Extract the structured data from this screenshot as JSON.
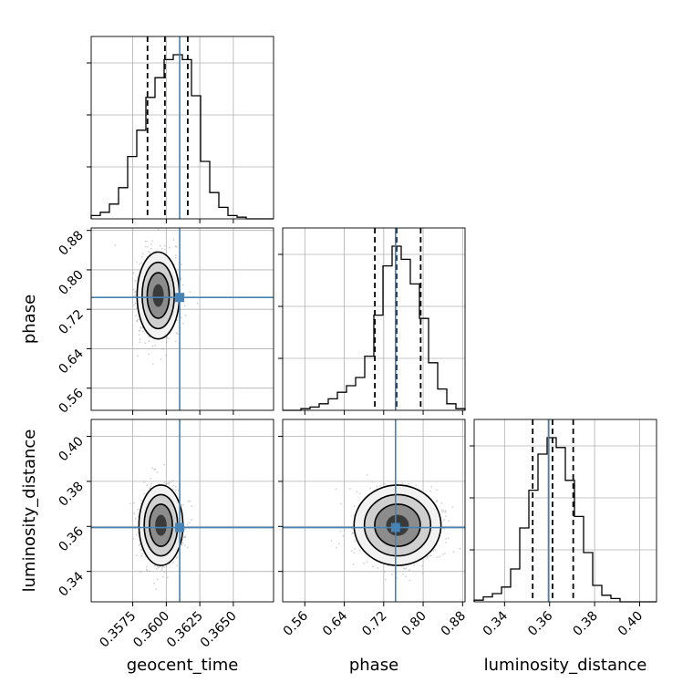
{
  "chart_data": {
    "type": "corner",
    "parameters": [
      "geocent_time",
      "phase",
      "luminosity_distance"
    ],
    "truths": [
      0.361,
      0.744,
      0.3595
    ],
    "colors": {
      "truth": "#4682b4",
      "hist": "#000000",
      "grid": "#b0b0b0"
    },
    "ranges": {
      "geocent_time": [
        0.3544,
        0.368
      ],
      "phase": [
        0.515,
        0.885
      ],
      "luminosity_distance": [
        0.3265,
        0.4075
      ]
    },
    "ticks": {
      "geocent_time": [
        "0.3575",
        "0.3600",
        "0.3625",
        "0.3650"
      ],
      "phase": [
        "0.56",
        "0.64",
        "0.72",
        "0.80",
        "0.88"
      ],
      "luminosity_distance": [
        "0.34",
        "0.36",
        "0.38",
        "0.40"
      ]
    },
    "quantiles": {
      "geocent_time": [
        0.3586,
        0.3599,
        0.3616
      ],
      "phase": [
        0.702,
        0.746,
        0.795
      ],
      "luminosity_distance": [
        0.3525,
        0.3613,
        0.3705
      ]
    },
    "histograms": {
      "geocent_time": [
        0.02,
        0.04,
        0.09,
        0.19,
        0.38,
        0.54,
        0.74,
        0.86,
        0.97,
        1.0,
        0.97,
        0.75,
        0.35,
        0.16,
        0.07,
        0.02,
        0.01,
        0.0,
        0.0,
        0.0
      ],
      "phase": [
        0.0,
        0.0,
        0.01,
        0.02,
        0.04,
        0.07,
        0.11,
        0.15,
        0.2,
        0.33,
        0.58,
        0.88,
        1.0,
        0.92,
        0.77,
        0.56,
        0.29,
        0.13,
        0.04,
        0.01
      ],
      "luminosity_distance": [
        0.01,
        0.03,
        0.05,
        0.09,
        0.2,
        0.45,
        0.68,
        0.9,
        1.0,
        0.94,
        0.74,
        0.52,
        0.3,
        0.1,
        0.04,
        0.02,
        0.0,
        0.0,
        0.0,
        0.0
      ]
    },
    "pairs": [
      {
        "x": "geocent_time",
        "y": "phase",
        "center": [
          0.3594,
          0.748
        ],
        "sigma": [
          0.00075,
          0.042
        ]
      },
      {
        "x": "geocent_time",
        "y": "luminosity_distance",
        "center": [
          0.3596,
          0.3605
        ],
        "sigma": [
          0.00078,
          0.0085
        ]
      },
      {
        "x": "phase",
        "y": "luminosity_distance",
        "center": [
          0.748,
          0.3605
        ],
        "sigma": [
          0.042,
          0.0085
        ]
      }
    ],
    "grid": true
  }
}
